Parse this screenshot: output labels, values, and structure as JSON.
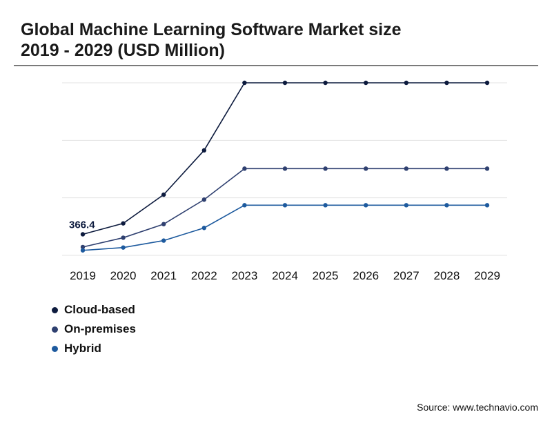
{
  "header": {
    "title_line1": "Global Machine Learning Software Market size",
    "title_line2": "2019 - 2029 (USD Million)"
  },
  "footer": {
    "source": "Source: www.technavio.com"
  },
  "chart_data": {
    "type": "line",
    "title": "Global Machine Learning Software Market size 2019 - 2029 (USD Million)",
    "xlabel": "",
    "ylabel": "",
    "categories": [
      "2019",
      "2020",
      "2021",
      "2022",
      "2023",
      "2024",
      "2025",
      "2026",
      "2027",
      "2028",
      "2029"
    ],
    "ylim": [
      0,
      3000
    ],
    "grid": true,
    "yticks_visible": false,
    "legend_position": "bottom-left",
    "series": [
      {
        "name": "Cloud-based",
        "color": "#0d1b3e",
        "values": [
          366.4,
          556,
          1055,
          1826,
          3000,
          3000,
          3000,
          3000,
          3000,
          3000,
          3000
        ]
      },
      {
        "name": "On-premises",
        "color": "#2f4070",
        "values": [
          145,
          307,
          543,
          969,
          1508,
          1508,
          1508,
          1508,
          1508,
          1508,
          1508
        ]
      },
      {
        "name": "Hybrid",
        "color": "#1d5a9e",
        "values": [
          87,
          136,
          257,
          477,
          872,
          872,
          872,
          872,
          872,
          872,
          872
        ]
      }
    ],
    "annotations": [
      {
        "series": "Cloud-based",
        "category": "2019",
        "label": "366.4"
      }
    ]
  }
}
